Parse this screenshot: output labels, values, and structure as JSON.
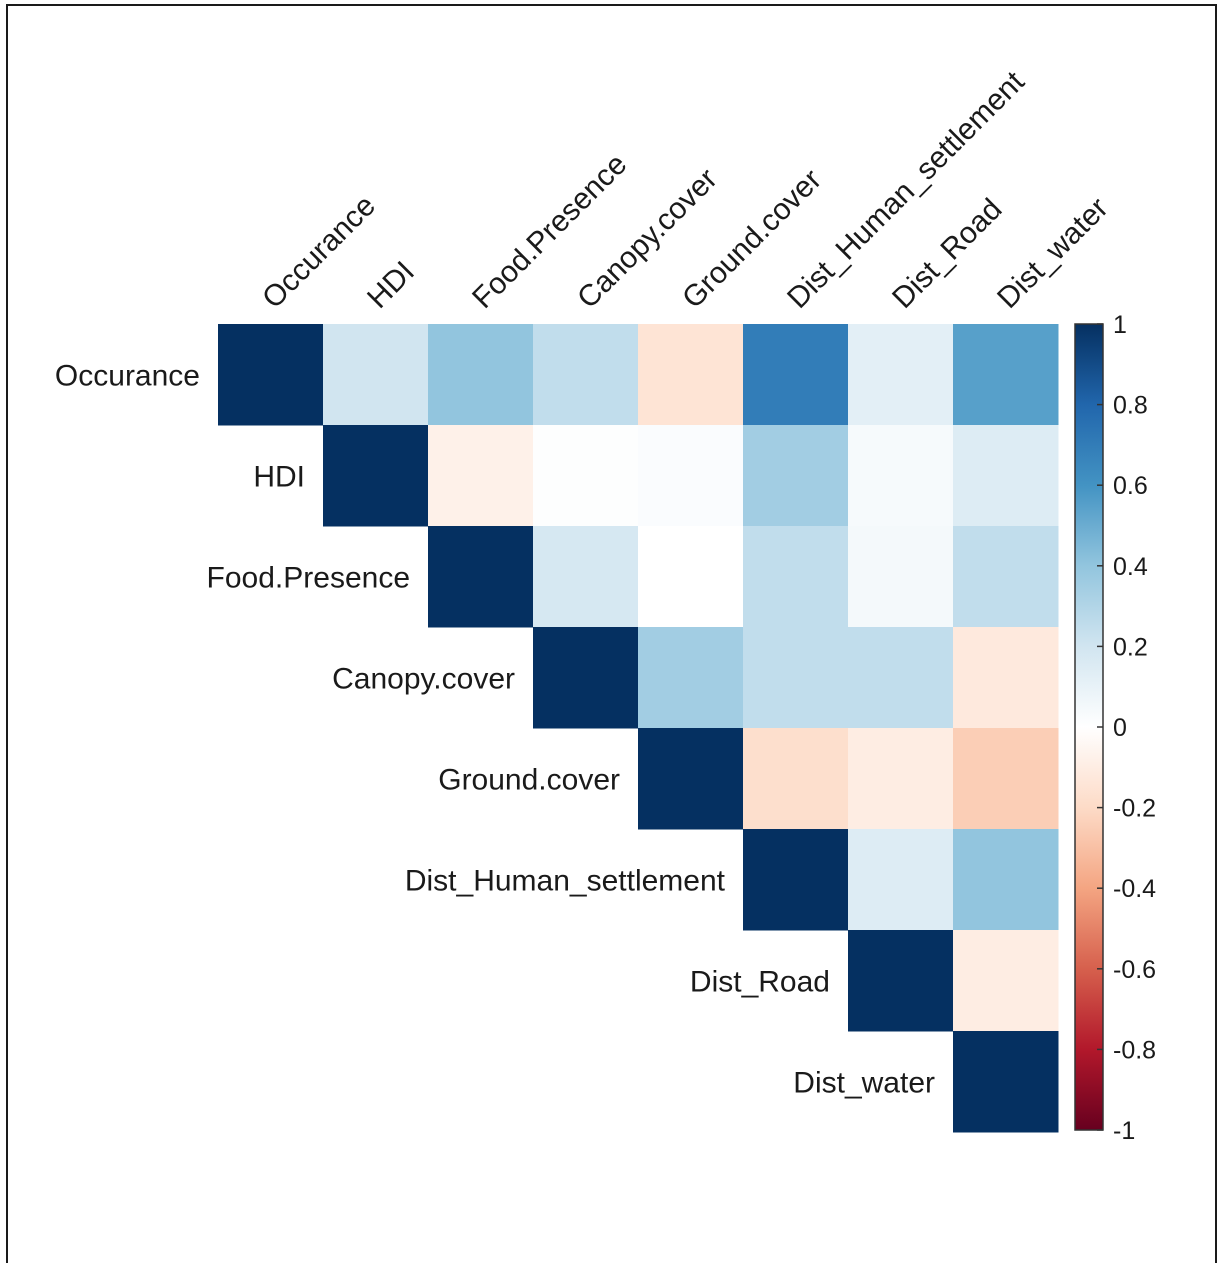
{
  "chart_data": {
    "type": "heatmap",
    "variables": [
      "Occurance",
      "HDI",
      "Food.Presence",
      "Canopy.cover",
      "Ground.cover",
      "Dist_Human_settlement",
      "Dist_Road",
      "Dist_water"
    ],
    "triangle": "upper",
    "matrix": [
      [
        1.0,
        0.2,
        0.4,
        0.25,
        -0.15,
        0.7,
        0.12,
        0.55
      ],
      [
        null,
        1.0,
        -0.08,
        0.01,
        0.02,
        0.35,
        0.04,
        0.15
      ],
      [
        null,
        null,
        1.0,
        0.18,
        0.0,
        0.25,
        0.05,
        0.25
      ],
      [
        null,
        null,
        null,
        1.0,
        0.35,
        0.25,
        0.25,
        -0.12
      ],
      [
        null,
        null,
        null,
        null,
        1.0,
        -0.18,
        -0.1,
        -0.25
      ],
      [
        null,
        null,
        null,
        null,
        null,
        1.0,
        0.15,
        0.4
      ],
      [
        null,
        null,
        null,
        null,
        null,
        null,
        1.0,
        -0.1
      ],
      [
        null,
        null,
        null,
        null,
        null,
        null,
        null,
        1.0
      ]
    ],
    "colorbar": {
      "min": -1,
      "max": 1,
      "tick_labels": [
        "1",
        "0.8",
        "0.6",
        "0.4",
        "0.2",
        "0",
        "-0.2",
        "-0.4",
        "-0.6",
        "-0.8",
        "-1"
      ],
      "tick_values": [
        1,
        0.8,
        0.6,
        0.4,
        0.2,
        0,
        -0.2,
        -0.4,
        -0.6,
        -0.8,
        -1
      ],
      "colors": {
        "neg_strong": "#67001f",
        "neg_mid": "#d6604d",
        "neutral": "#ffffff",
        "pos_mid": "#4393c3",
        "pos_strong": "#053061"
      }
    },
    "grid": false,
    "legend": "right"
  }
}
